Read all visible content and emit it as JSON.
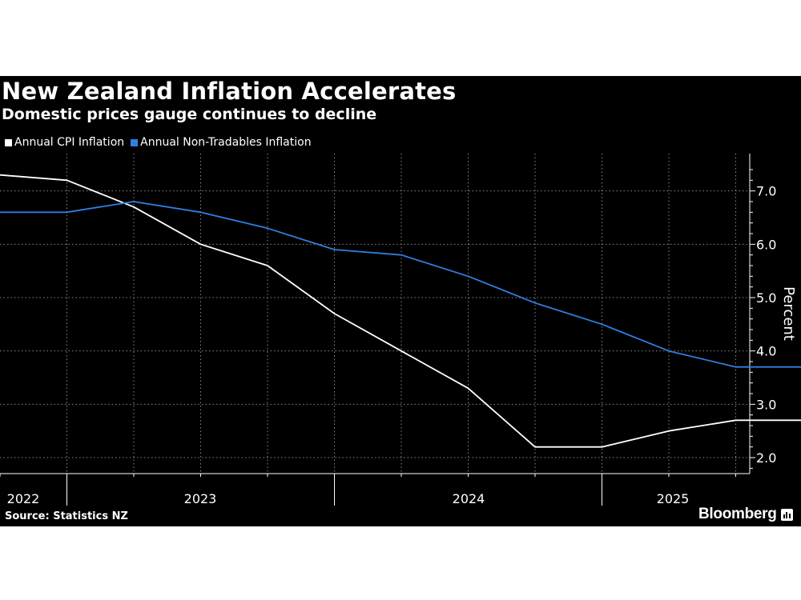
{
  "header": {
    "title": "New Zealand Inflation Accelerates",
    "subtitle": "Domestic prices gauge continues to decline"
  },
  "footer": {
    "source": "Source: Statistics NZ",
    "logo": "Bloomberg"
  },
  "colors": {
    "background": "#000000",
    "cpi": "#ffffff",
    "non_tradables": "#2f7fe0",
    "grid": "#888888"
  },
  "chart_data": {
    "type": "line",
    "title": "New Zealand Inflation Accelerates",
    "subtitle": "Domestic prices gauge continues to decline",
    "ylabel": "Percent",
    "xlabel": "",
    "ylim": [
      1.7,
      7.7
    ],
    "yticks": [
      2.0,
      3.0,
      4.0,
      5.0,
      6.0,
      7.0
    ],
    "ytick_labels": [
      "2.0",
      "3.0",
      "4.0",
      "5.0",
      "6.0",
      "7.0"
    ],
    "x": [
      "2022-Q2",
      "2022-Q3",
      "2022-Q4",
      "2023-Q1",
      "2023-Q2",
      "2023-Q3",
      "2023-Q4",
      "2024-Q1",
      "2024-Q2",
      "2024-Q3",
      "2024-Q4",
      "2025-Q1",
      "2025-Q2"
    ],
    "year_labels": [
      "2022",
      "2023",
      "2024",
      "2025"
    ],
    "grid": true,
    "legend_position": "top-left",
    "series": [
      {
        "name": "Annual CPI Inflation",
        "color": "#ffffff",
        "values": [
          7.3,
          7.2,
          6.7,
          6.0,
          5.6,
          4.7,
          4.0,
          3.3,
          2.2,
          2.2,
          2.5,
          2.7,
          2.7
        ]
      },
      {
        "name": "Annual Non-Tradables Inflation",
        "color": "#2f7fe0",
        "values": [
          6.6,
          6.6,
          6.8,
          6.6,
          6.3,
          5.9,
          5.8,
          5.4,
          4.9,
          4.5,
          4.0,
          3.7,
          3.7
        ]
      }
    ]
  }
}
